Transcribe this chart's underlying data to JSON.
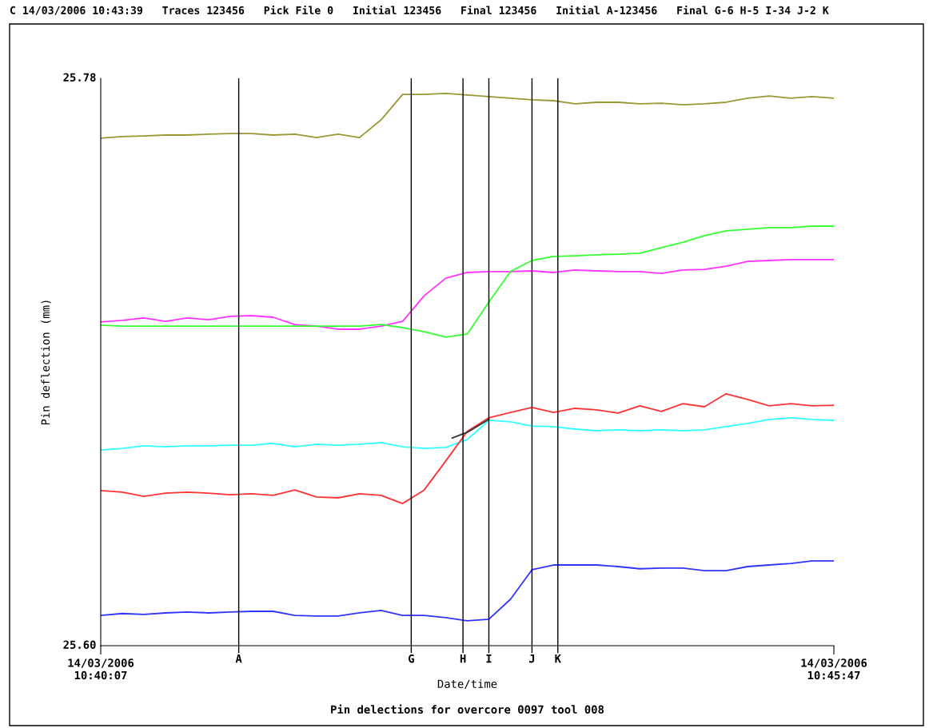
{
  "chart_data": {
    "type": "line",
    "title": "C 14/03/2006 10:43:39   Traces 123456   Pick File 0   Initial 123456   Final 123456   Initial A-123456   Final G-6 H-5 I-34 J-2 K",
    "xlabel": "Date/time",
    "ylabel": "Pin deflection (mm)",
    "annotations": [
      "Pin delections for overcore 0097 tool 008"
    ],
    "x": [
      "2006-03-14T10:40:07",
      "2006-03-14T10:40:17",
      "2006-03-14T10:40:27",
      "2006-03-14T10:40:37",
      "2006-03-14T10:40:47",
      "2006-03-14T10:40:57",
      "2006-03-14T10:41:07",
      "2006-03-14T10:41:17",
      "2006-03-14T10:41:27",
      "2006-03-14T10:41:37",
      "2006-03-14T10:41:47",
      "2006-03-14T10:41:57",
      "2006-03-14T10:42:07",
      "2006-03-14T10:42:17",
      "2006-03-14T10:42:27",
      "2006-03-14T10:42:37",
      "2006-03-14T10:42:47",
      "2006-03-14T10:42:57",
      "2006-03-14T10:43:07",
      "2006-03-14T10:43:17",
      "2006-03-14T10:43:27",
      "2006-03-14T10:43:37",
      "2006-03-14T10:43:47",
      "2006-03-14T10:43:57",
      "2006-03-14T10:44:07",
      "2006-03-14T10:44:17",
      "2006-03-14T10:44:27",
      "2006-03-14T10:44:37",
      "2006-03-14T10:44:47",
      "2006-03-14T10:44:57",
      "2006-03-14T10:45:07",
      "2006-03-14T10:45:17",
      "2006-03-14T10:45:27",
      "2006-03-14T10:45:37",
      "2006-03-14T10:45:47"
    ],
    "series": [
      {
        "color": "#999933",
        "values": [
          25.761,
          25.7615,
          25.7617,
          25.762,
          25.762,
          25.7623,
          25.7625,
          25.7625,
          25.762,
          25.7623,
          25.7612,
          25.7623,
          25.7612,
          25.7668,
          25.7749,
          25.7749,
          25.7752,
          25.7747,
          25.7742,
          25.7737,
          25.7732,
          25.7729,
          25.7719,
          25.7724,
          25.7724,
          25.7719,
          25.7721,
          25.7716,
          25.7719,
          25.7724,
          25.7737,
          25.7744,
          25.7737,
          25.7742,
          25.7737
        ]
      },
      {
        "color": "#ff33ff",
        "values": [
          25.7027,
          25.7032,
          25.704,
          25.7029,
          25.704,
          25.7034,
          25.7045,
          25.7047,
          25.7042,
          25.7019,
          25.7014,
          25.7004,
          25.7004,
          25.7014,
          25.7029,
          25.711,
          25.7166,
          25.7184,
          25.7187,
          25.7187,
          25.7189,
          25.7184,
          25.7192,
          25.7189,
          25.7187,
          25.7187,
          25.7181,
          25.7192,
          25.7194,
          25.7204,
          25.7219,
          25.7222,
          25.7225,
          25.7225,
          25.7225
        ]
      },
      {
        "color": "#33ff33",
        "values": [
          25.7017,
          25.7014,
          25.7014,
          25.7014,
          25.7014,
          25.7014,
          25.7014,
          25.7014,
          25.7014,
          25.7014,
          25.7014,
          25.7014,
          25.7014,
          25.7019,
          25.7009,
          25.6996,
          25.6979,
          25.6989,
          25.709,
          25.7187,
          25.7222,
          25.7235,
          25.7237,
          25.724,
          25.7242,
          25.7245,
          25.7263,
          25.728,
          25.7301,
          25.7316,
          25.7321,
          25.7326,
          25.7326,
          25.7331,
          25.7331
        ]
      },
      {
        "color": "#33ffff",
        "values": [
          25.6621,
          25.6626,
          25.6634,
          25.6631,
          25.6634,
          25.6634,
          25.6636,
          25.6636,
          25.6642,
          25.6631,
          25.6639,
          25.6636,
          25.6639,
          25.6644,
          25.6631,
          25.6626,
          25.6629,
          25.6654,
          25.6715,
          25.671,
          25.6697,
          25.6695,
          25.6687,
          25.6682,
          25.6685,
          25.6682,
          25.6685,
          25.6682,
          25.6685,
          25.6695,
          25.6705,
          25.6718,
          25.6723,
          25.6718,
          25.6715
        ]
      },
      {
        "color": "#ff3333",
        "values": [
          25.6492,
          25.6487,
          25.6474,
          25.6484,
          25.6487,
          25.6484,
          25.6479,
          25.6482,
          25.6477,
          25.6494,
          25.6472,
          25.6469,
          25.6482,
          25.6477,
          25.6451,
          25.6494,
          25.6586,
          25.668,
          25.6723,
          25.674,
          25.6756,
          25.674,
          25.6753,
          25.6748,
          25.6738,
          25.6761,
          25.6743,
          25.6768,
          25.6758,
          25.6799,
          25.6781,
          25.6761,
          25.6768,
          25.6761,
          25.6763
        ]
      },
      {
        "color": "#3333ff",
        "values": [
          25.6096,
          25.6102,
          25.6099,
          25.6104,
          25.6107,
          25.6104,
          25.6107,
          25.6109,
          25.6109,
          25.6096,
          25.6094,
          25.6094,
          25.6104,
          25.6112,
          25.6096,
          25.6096,
          25.6089,
          25.6079,
          25.6084,
          25.6147,
          25.6241,
          25.6256,
          25.6256,
          25.6256,
          25.6251,
          25.6244,
          25.6246,
          25.6246,
          25.6238,
          25.6238,
          25.6251,
          25.6256,
          25.6261,
          25.6269,
          25.6269
        ]
      },
      {
        "color": "#333333",
        "x": [
          "2006-03-14T10:42:50",
          "2006-03-14T10:42:57",
          "2006-03-14T10:43:07"
        ],
        "values": [
          25.6659,
          25.6677,
          25.6718
        ]
      }
    ],
    "xlim": [
      "2006-03-14T10:40:07",
      "2006-03-14T10:45:47"
    ],
    "xticks": [
      {
        "value": "2006-03-14T10:40:07",
        "label": "14/03/2006\n10:40:07"
      },
      {
        "value": "2006-03-14T10:45:47",
        "label": "14/03/2006\n10:45:47"
      }
    ],
    "ylim": [
      25.6,
      25.78
    ],
    "yticks": [
      {
        "value": 25.6,
        "label": "25.60"
      },
      {
        "value": 25.78,
        "label": "25.78"
      }
    ],
    "ref_lines": [
      {
        "axis": "x",
        "value": "2006-03-14T10:41:11",
        "label": "A",
        "color": "#000000"
      },
      {
        "axis": "x",
        "value": "2006-03-14T10:42:31",
        "label": "G",
        "color": "#000000"
      },
      {
        "axis": "x",
        "value": "2006-03-14T10:42:55",
        "label": "H",
        "color": "#000000"
      },
      {
        "axis": "x",
        "value": "2006-03-14T10:43:07",
        "label": "I",
        "color": "#000000"
      },
      {
        "axis": "x",
        "value": "2006-03-14T10:43:27",
        "label": "J",
        "color": "#000000"
      },
      {
        "axis": "x",
        "value": "2006-03-14T10:43:39",
        "label": "K",
        "color": "#000000"
      }
    ],
    "grid": false,
    "legend": false,
    "marker": "none",
    "line_style": "solid"
  }
}
